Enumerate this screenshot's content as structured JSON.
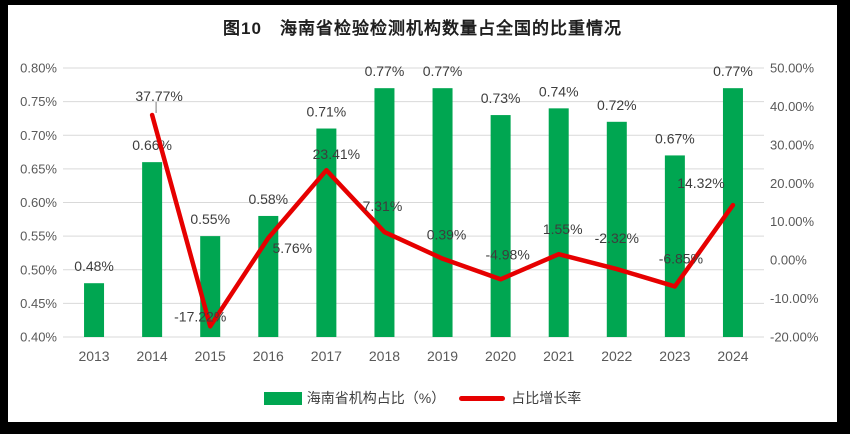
{
  "title": "图10　海南省检验检测机构数量占全国的比重情况",
  "legend": {
    "bar_label": "海南省机构占比（%）",
    "line_label": "占比增长率"
  },
  "colors": {
    "bar": "#00A651",
    "line": "#E60000",
    "grid": "#D9D9D9",
    "axis_text": "#595959",
    "data_label": "#3d3d3d",
    "leader": "#A6A6A6",
    "frame": "#000000",
    "background": "#FFFFFF"
  },
  "chart_data": {
    "type": "bar",
    "subtype": "bar-line-combo",
    "title": "图10　海南省检验检测机构数量占全国的比重情况",
    "categories": [
      "2013",
      "2014",
      "2015",
      "2016",
      "2017",
      "2018",
      "2019",
      "2020",
      "2021",
      "2022",
      "2023",
      "2024"
    ],
    "series": [
      {
        "name": "海南省机构占比（%）",
        "chart_type": "bar",
        "axis": "left",
        "color": "#00A651",
        "values": [
          0.48,
          0.66,
          0.55,
          0.58,
          0.71,
          0.77,
          0.77,
          0.73,
          0.74,
          0.72,
          0.67,
          0.77
        ],
        "data_labels": [
          "0.48%",
          "0.66%",
          "0.55%",
          "0.58%",
          "0.71%",
          "0.77%",
          "0.77%",
          "0.73%",
          "0.74%",
          "0.72%",
          "0.67%",
          "0.77%"
        ]
      },
      {
        "name": "占比增长率",
        "chart_type": "line",
        "axis": "right",
        "color": "#E60000",
        "values": [
          null,
          37.77,
          -17.22,
          5.76,
          23.41,
          7.31,
          0.39,
          -4.98,
          1.55,
          -2.32,
          -6.85,
          14.32
        ],
        "data_labels": [
          null,
          "37.77%",
          "-17.22%",
          "5.76%",
          "23.41%",
          "7.31%",
          "0.39%",
          "-4.98%",
          "1.55%",
          "-2.32%",
          "-6.85%",
          "14.32%"
        ]
      }
    ],
    "left_axis": {
      "min": 0.4,
      "max": 0.8,
      "step": 0.05,
      "tick_labels": [
        "0.80%",
        "0.75%",
        "0.70%",
        "0.65%",
        "0.60%",
        "0.55%",
        "0.50%",
        "0.45%",
        "0.40%"
      ]
    },
    "right_axis": {
      "min": -20,
      "max": 50,
      "step": 10,
      "tick_labels": [
        "50.00%",
        "40.00%",
        "30.00%",
        "20.00%",
        "10.00%",
        "0.00%",
        "-10.00%",
        "-20.00%"
      ]
    },
    "xlabel": "",
    "ylabel": "",
    "grid": true,
    "legend_position": "bottom"
  }
}
